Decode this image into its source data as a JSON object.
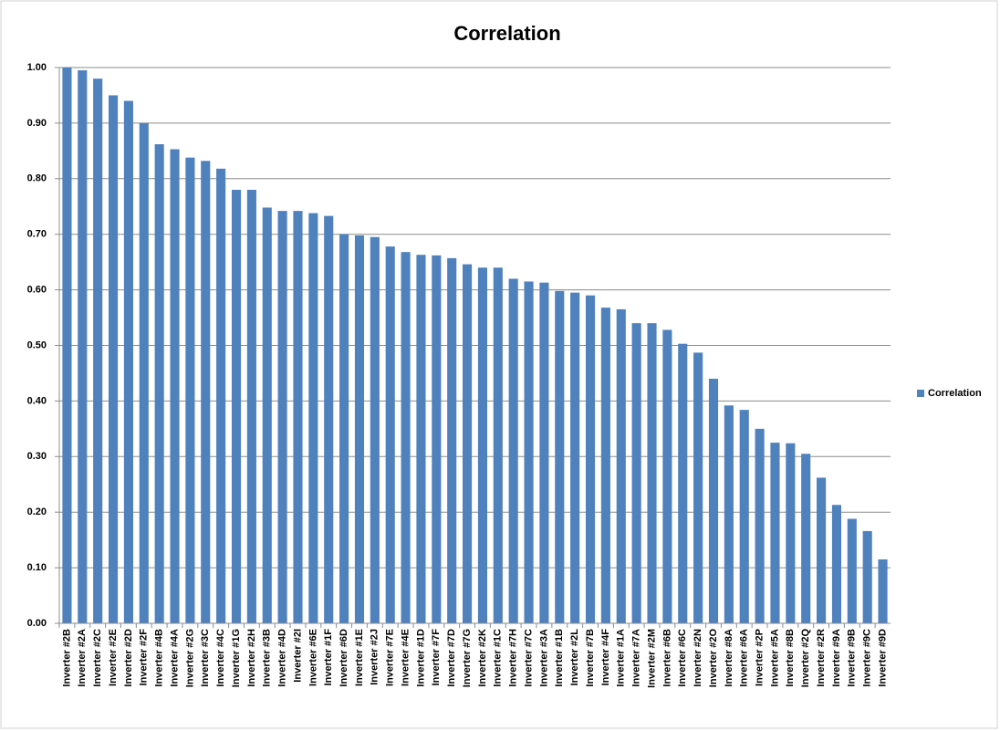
{
  "chart_data": {
    "type": "bar",
    "title": "Correlation",
    "categories": [
      "Inverter #2B",
      "Inverter #2A",
      "Inverter #2C",
      "Inverter #2E",
      "Inverter #2D",
      "Inverter #2F",
      "Inverter #4B",
      "Inverter #4A",
      "Inverter #2G",
      "Inverter #3C",
      "Inverter #4C",
      "Inverter #1G",
      "Inverter #2H",
      "Inverter #3B",
      "Inverter #4D",
      "Inverter #2I",
      "Inverter #6E",
      "Inverter #1F",
      "Inverter #6D",
      "Inverter #1E",
      "Inverter #2J",
      "Inverter #7E",
      "Inverter #4E",
      "Inverter #1D",
      "Inverter #7F",
      "Inverter #7D",
      "Inverter #7G",
      "Inverter #2K",
      "Inverter #1C",
      "Inverter #7H",
      "Inverter #7C",
      "Inverter #3A",
      "Inverter #1B",
      "Inverter #2L",
      "Inverter #7B",
      "Inverter #4F",
      "Inverter #1A",
      "Inverter #7A",
      "Inverter #2M",
      "Inverter #6B",
      "Inverter #6C",
      "Inverter #2N",
      "Inverter #2O",
      "Inverter #8A",
      "Inverter #6A",
      "Inverter #2P",
      "Inverter #5A",
      "Inverter #8B",
      "Inverter #2Q",
      "Inverter #2R",
      "Inverter #9A",
      "Inverter #9B",
      "Inverter #9C",
      "Inverter #9D"
    ],
    "series": [
      {
        "name": "Correlation",
        "color": "#4f81bd",
        "values": [
          1.0,
          0.995,
          0.98,
          0.95,
          0.94,
          0.9,
          0.862,
          0.853,
          0.838,
          0.832,
          0.818,
          0.78,
          0.78,
          0.748,
          0.742,
          0.742,
          0.738,
          0.733,
          0.7,
          0.698,
          0.695,
          0.678,
          0.668,
          0.663,
          0.662,
          0.657,
          0.646,
          0.64,
          0.64,
          0.62,
          0.615,
          0.613,
          0.598,
          0.595,
          0.59,
          0.568,
          0.565,
          0.54,
          0.54,
          0.528,
          0.503,
          0.487,
          0.44,
          0.392,
          0.384,
          0.35,
          0.325,
          0.324,
          0.305,
          0.262,
          0.213,
          0.188,
          0.166,
          0.115
        ]
      }
    ],
    "ylim": [
      0,
      1
    ],
    "yticks": [
      {
        "value": 0,
        "label": "0.00"
      },
      {
        "value": 0.1,
        "label": "0.10"
      },
      {
        "value": 0.2,
        "label": "0.20"
      },
      {
        "value": 0.3,
        "label": "0.30"
      },
      {
        "value": 0.4,
        "label": "0.40"
      },
      {
        "value": 0.5,
        "label": "0.50"
      },
      {
        "value": 0.6,
        "label": "0.60"
      },
      {
        "value": 0.7,
        "label": "0.70"
      },
      {
        "value": 0.8,
        "label": "0.80"
      },
      {
        "value": 0.9,
        "label": "0.90"
      },
      {
        "value": 1,
        "label": "1.00"
      }
    ],
    "grid": true,
    "legend": "right"
  }
}
